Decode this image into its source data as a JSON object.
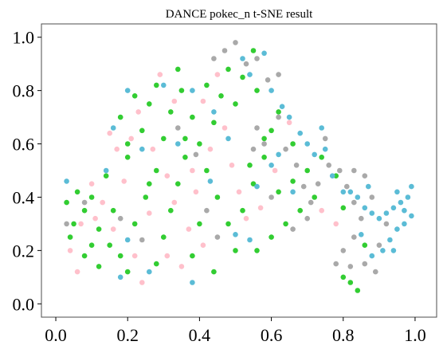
{
  "chart_data": {
    "type": "scatter",
    "title": "DANCE pokec_n t-SNE result",
    "xlabel": "",
    "ylabel": "",
    "xlim": [
      -0.04,
      1.06
    ],
    "ylim": [
      -0.05,
      1.05
    ],
    "xticks": [
      "0.0",
      "0.2",
      "0.4",
      "0.6",
      "0.8",
      "1.0"
    ],
    "yticks": [
      "0.0",
      "0.2",
      "0.4",
      "0.6",
      "0.8",
      "1.0"
    ],
    "grid": false,
    "legend": "none",
    "colors": [
      "#32cd32",
      "#ffc0cb",
      "#a9a9a9",
      "#5bbcd6"
    ],
    "series": [
      {
        "color": "#32cd32",
        "points": [
          [
            0.06,
            0.42
          ],
          [
            0.08,
            0.35
          ],
          [
            0.12,
            0.28
          ],
          [
            0.15,
            0.22
          ],
          [
            0.18,
            0.18
          ],
          [
            0.22,
            0.3
          ],
          [
            0.25,
            0.4
          ],
          [
            0.28,
            0.5
          ],
          [
            0.3,
            0.62
          ],
          [
            0.32,
            0.72
          ],
          [
            0.35,
            0.8
          ],
          [
            0.38,
            0.7
          ],
          [
            0.4,
            0.6
          ],
          [
            0.42,
            0.5
          ],
          [
            0.45,
            0.4
          ],
          [
            0.48,
            0.3
          ],
          [
            0.5,
            0.2
          ],
          [
            0.52,
            0.35
          ],
          [
            0.55,
            0.45
          ],
          [
            0.58,
            0.55
          ],
          [
            0.6,
            0.65
          ],
          [
            0.5,
            0.75
          ],
          [
            0.52,
            0.85
          ],
          [
            0.55,
            0.95
          ],
          [
            0.48,
            0.88
          ],
          [
            0.46,
            0.78
          ],
          [
            0.44,
            0.68
          ],
          [
            0.36,
            0.55
          ],
          [
            0.34,
            0.45
          ],
          [
            0.32,
            0.35
          ],
          [
            0.3,
            0.25
          ],
          [
            0.28,
            0.15
          ],
          [
            0.2,
            0.12
          ],
          [
            0.12,
            0.14
          ],
          [
            0.1,
            0.22
          ],
          [
            0.05,
            0.3
          ],
          [
            0.03,
            0.38
          ],
          [
            0.14,
            0.48
          ],
          [
            0.2,
            0.55
          ],
          [
            0.24,
            0.65
          ],
          [
            0.26,
            0.75
          ],
          [
            0.22,
            0.78
          ],
          [
            0.18,
            0.7
          ],
          [
            0.2,
            0.6
          ],
          [
            0.28,
            0.82
          ],
          [
            0.34,
            0.88
          ],
          [
            0.42,
            0.82
          ],
          [
            0.56,
            0.8
          ],
          [
            0.62,
            0.72
          ],
          [
            0.66,
            0.6
          ],
          [
            0.7,
            0.5
          ],
          [
            0.72,
            0.4
          ],
          [
            0.68,
            0.35
          ],
          [
            0.64,
            0.3
          ],
          [
            0.6,
            0.25
          ],
          [
            0.56,
            0.2
          ],
          [
            0.62,
            0.42
          ],
          [
            0.66,
            0.46
          ],
          [
            0.74,
            0.55
          ],
          [
            0.78,
            0.48
          ],
          [
            0.8,
            0.36
          ],
          [
            0.82,
            0.08
          ],
          [
            0.84,
            0.05
          ],
          [
            0.8,
            0.1
          ],
          [
            0.86,
            0.22
          ],
          [
            0.16,
            0.35
          ],
          [
            0.08,
            0.18
          ],
          [
            0.38,
            0.18
          ],
          [
            0.4,
            0.3
          ],
          [
            0.44,
            0.12
          ],
          [
            0.36,
            0.62
          ],
          [
            0.26,
            0.45
          ],
          [
            0.04,
            0.25
          ],
          [
            0.1,
            0.4
          ],
          [
            0.58,
            0.62
          ],
          [
            0.54,
            0.52
          ]
        ]
      },
      {
        "color": "#ffc0cb",
        "points": [
          [
            0.04,
            0.2
          ],
          [
            0.07,
            0.3
          ],
          [
            0.1,
            0.45
          ],
          [
            0.13,
            0.38
          ],
          [
            0.16,
            0.28
          ],
          [
            0.19,
            0.46
          ],
          [
            0.21,
            0.62
          ],
          [
            0.23,
            0.72
          ],
          [
            0.27,
            0.58
          ],
          [
            0.31,
            0.48
          ],
          [
            0.33,
            0.38
          ],
          [
            0.37,
            0.28
          ],
          [
            0.39,
            0.42
          ],
          [
            0.43,
            0.58
          ],
          [
            0.47,
            0.66
          ],
          [
            0.49,
            0.52
          ],
          [
            0.51,
            0.42
          ],
          [
            0.53,
            0.32
          ],
          [
            0.29,
            0.86
          ],
          [
            0.33,
            0.76
          ],
          [
            0.41,
            0.76
          ],
          [
            0.45,
            0.86
          ],
          [
            0.17,
            0.58
          ],
          [
            0.11,
            0.32
          ],
          [
            0.06,
            0.12
          ],
          [
            0.24,
            0.08
          ],
          [
            0.31,
            0.18
          ],
          [
            0.35,
            0.14
          ],
          [
            0.41,
            0.22
          ],
          [
            0.57,
            0.36
          ],
          [
            0.61,
            0.5
          ],
          [
            0.65,
            0.68
          ],
          [
            0.74,
            0.35
          ],
          [
            0.78,
            0.3
          ],
          [
            0.22,
            0.18
          ],
          [
            0.26,
            0.34
          ],
          [
            0.15,
            0.64
          ],
          [
            0.38,
            0.5
          ]
        ]
      },
      {
        "color": "#a9a9a9",
        "points": [
          [
            0.47,
            0.95
          ],
          [
            0.5,
            0.98
          ],
          [
            0.53,
            0.9
          ],
          [
            0.56,
            0.92
          ],
          [
            0.59,
            0.84
          ],
          [
            0.62,
            0.7
          ],
          [
            0.64,
            0.58
          ],
          [
            0.67,
            0.52
          ],
          [
            0.69,
            0.44
          ],
          [
            0.71,
            0.38
          ],
          [
            0.73,
            0.45
          ],
          [
            0.76,
            0.52
          ],
          [
            0.79,
            0.5
          ],
          [
            0.81,
            0.44
          ],
          [
            0.83,
            0.38
          ],
          [
            0.85,
            0.32
          ],
          [
            0.83,
            0.25
          ],
          [
            0.8,
            0.2
          ],
          [
            0.78,
            0.15
          ],
          [
            0.82,
            0.14
          ],
          [
            0.86,
            0.15
          ],
          [
            0.89,
            0.12
          ],
          [
            0.9,
            0.22
          ],
          [
            0.92,
            0.3
          ],
          [
            0.58,
            0.6
          ],
          [
            0.55,
            0.58
          ],
          [
            0.6,
            0.4
          ],
          [
            0.66,
            0.28
          ],
          [
            0.7,
            0.32
          ],
          [
            0.86,
            0.48
          ],
          [
            0.83,
            0.5
          ],
          [
            0.42,
            0.35
          ],
          [
            0.45,
            0.25
          ],
          [
            0.08,
            0.38
          ],
          [
            0.03,
            0.3
          ],
          [
            0.18,
            0.32
          ],
          [
            0.24,
            0.24
          ],
          [
            0.34,
            0.66
          ],
          [
            0.39,
            0.56
          ],
          [
            0.56,
            0.66
          ],
          [
            0.62,
            0.86
          ],
          [
            0.44,
            0.92
          ],
          [
            0.75,
            0.62
          ],
          [
            0.88,
            0.4
          ]
        ]
      },
      {
        "color": "#5bbcd6",
        "points": [
          [
            0.52,
            0.92
          ],
          [
            0.54,
            0.86
          ],
          [
            0.58,
            0.94
          ],
          [
            0.6,
            0.8
          ],
          [
            0.63,
            0.74
          ],
          [
            0.65,
            0.7
          ],
          [
            0.68,
            0.64
          ],
          [
            0.7,
            0.6
          ],
          [
            0.72,
            0.56
          ],
          [
            0.75,
            0.58
          ],
          [
            0.77,
            0.48
          ],
          [
            0.8,
            0.42
          ],
          [
            0.82,
            0.42
          ],
          [
            0.84,
            0.4
          ],
          [
            0.86,
            0.36
          ],
          [
            0.88,
            0.34
          ],
          [
            0.9,
            0.32
          ],
          [
            0.92,
            0.34
          ],
          [
            0.94,
            0.36
          ],
          [
            0.96,
            0.38
          ],
          [
            0.98,
            0.4
          ],
          [
            0.99,
            0.44
          ],
          [
            0.97,
            0.3
          ],
          [
            0.95,
            0.28
          ],
          [
            0.93,
            0.24
          ],
          [
            0.91,
            0.2
          ],
          [
            0.88,
            0.18
          ],
          [
            0.85,
            0.26
          ],
          [
            0.87,
            0.44
          ],
          [
            0.95,
            0.42
          ],
          [
            0.97,
            0.35
          ],
          [
            0.99,
            0.33
          ],
          [
            0.62,
            0.56
          ],
          [
            0.6,
            0.52
          ],
          [
            0.56,
            0.44
          ],
          [
            0.66,
            0.42
          ],
          [
            0.48,
            0.62
          ],
          [
            0.44,
            0.72
          ],
          [
            0.38,
            0.8
          ],
          [
            0.3,
            0.82
          ],
          [
            0.2,
            0.8
          ],
          [
            0.16,
            0.66
          ],
          [
            0.14,
            0.5
          ],
          [
            0.24,
            0.58
          ],
          [
            0.34,
            0.6
          ],
          [
            0.43,
            0.46
          ],
          [
            0.2,
            0.24
          ],
          [
            0.26,
            0.12
          ],
          [
            0.18,
            0.1
          ],
          [
            0.38,
            0.08
          ],
          [
            0.5,
            0.26
          ],
          [
            0.54,
            0.24
          ],
          [
            0.03,
            0.46
          ],
          [
            0.94,
            0.2
          ],
          [
            0.74,
            0.66
          ]
        ]
      }
    ]
  }
}
